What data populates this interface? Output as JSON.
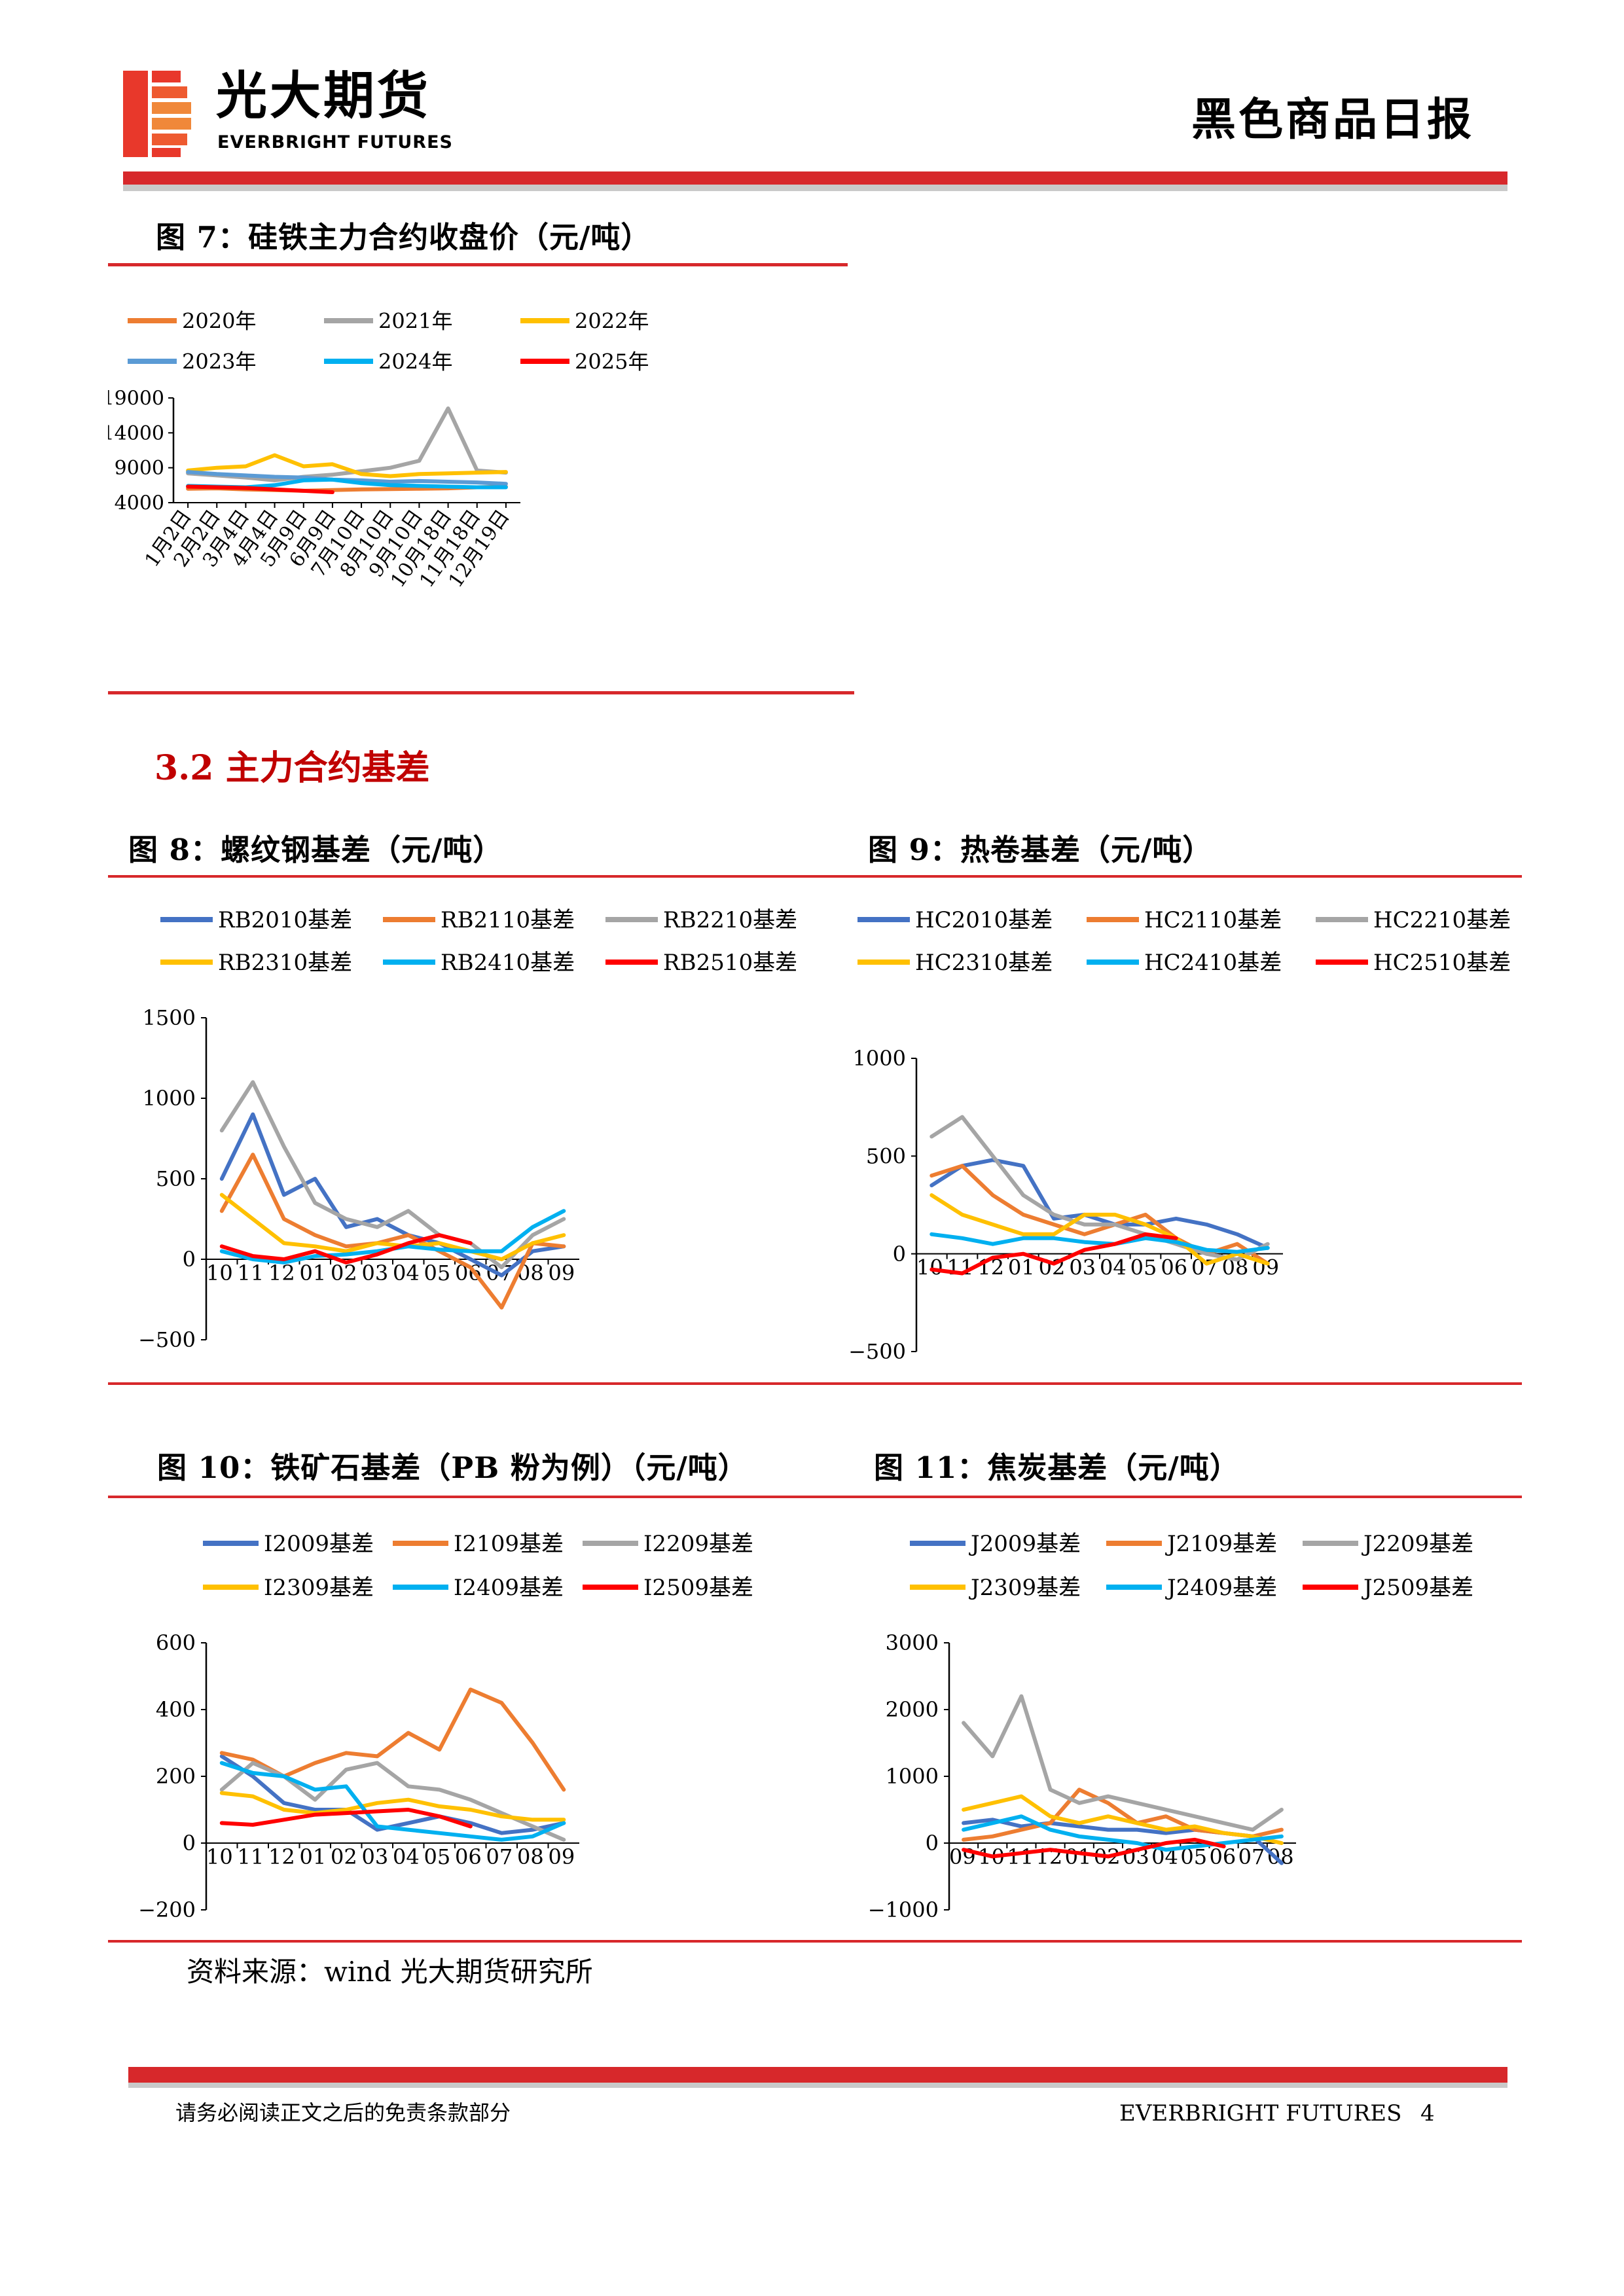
{
  "header": {
    "brand_cn": "光大期货",
    "brand_en": "EVERBRIGHT FUTURES",
    "report_title": "黑色商品日报",
    "logo_colors": [
      "#e8382b",
      "#f0883a"
    ]
  },
  "section": {
    "title": "3.2 主力合约基差"
  },
  "figures": [
    {
      "id": "fig7",
      "title": "图 7：硅铁主力合约收盘价（元/吨）"
    },
    {
      "id": "fig8",
      "title": "图 8：螺纹钢基差（元/吨）"
    },
    {
      "id": "fig9",
      "title": "图 9：热卷基差（元/吨）"
    },
    {
      "id": "fig10",
      "title": "图 10：铁矿石基差（PB 粉为例）（元/吨）"
    },
    {
      "id": "fig11",
      "title": "图 11：焦炭基差（元/吨）"
    }
  ],
  "source": "资料来源：wind 光大期货研究所",
  "footer": {
    "disclaimer": "请务必阅读正文之后的免责条款部分",
    "brand": "EVERBRIGHT FUTURES",
    "page": "4"
  },
  "chart_data": [
    {
      "id": "fig7",
      "type": "line",
      "title": "图 7：硅铁主力合约收盘价（元/吨）",
      "x": [
        "1月2日",
        "2月2日",
        "3月4日",
        "4月4日",
        "5月9日",
        "6月9日",
        "7月10日",
        "8月10日",
        "9月10日",
        "10月18日",
        "11月18日",
        "12月19日"
      ],
      "ylim": [
        4000,
        19000
      ],
      "yticks": [
        4000,
        9000,
        14000,
        19000
      ],
      "legend_position": "top",
      "legend_columns": 3,
      "series": [
        {
          "name": "2020年",
          "color": "#ed7d31",
          "values": [
            6000,
            6050,
            5900,
            5800,
            5700,
            5800,
            5900,
            5950,
            6000,
            6050,
            6200,
            6300
          ]
        },
        {
          "name": "2021年",
          "color": "#a5a5a5",
          "values": [
            8200,
            7900,
            7600,
            7200,
            7700,
            8000,
            8500,
            9000,
            10000,
            17500,
            8600,
            8300
          ]
        },
        {
          "name": "2022年",
          "color": "#ffc000",
          "values": [
            8600,
            9000,
            9200,
            10800,
            9200,
            9500,
            8100,
            7800,
            8100,
            8200,
            8300,
            8400
          ]
        },
        {
          "name": "2023年",
          "color": "#5b9bd5",
          "values": [
            8400,
            8100,
            7900,
            7700,
            7600,
            7300,
            7200,
            7000,
            7100,
            7000,
            6900,
            6700
          ]
        },
        {
          "name": "2024年",
          "color": "#00b0f0",
          "values": [
            6400,
            6300,
            6200,
            6500,
            7200,
            7300,
            6800,
            6500,
            6400,
            6300,
            6200,
            6200
          ]
        },
        {
          "name": "2025年",
          "color": "#ff0000",
          "values": [
            6300,
            6200,
            6100,
            5900,
            5700,
            5500,
            null,
            null,
            null,
            null,
            null,
            null
          ]
        }
      ]
    },
    {
      "id": "fig8",
      "type": "line",
      "title": "图 8：螺纹钢基差（元/吨）",
      "x": [
        "10",
        "11",
        "12",
        "01",
        "02",
        "03",
        "04",
        "05",
        "06",
        "07",
        "08",
        "09"
      ],
      "ylim": [
        -500,
        1500
      ],
      "yticks": [
        -500,
        0,
        500,
        1000,
        1500
      ],
      "legend_position": "top",
      "legend_columns": 3,
      "series": [
        {
          "name": "RB2010基差",
          "color": "#4472c4",
          "values": [
            500,
            900,
            400,
            500,
            200,
            250,
            150,
            100,
            0,
            -100,
            50,
            80
          ]
        },
        {
          "name": "RB2110基差",
          "color": "#ed7d31",
          "values": [
            300,
            650,
            250,
            150,
            80,
            100,
            150,
            50,
            -50,
            -300,
            100,
            80
          ]
        },
        {
          "name": "RB2210基差",
          "color": "#a5a5a5",
          "values": [
            800,
            1100,
            700,
            350,
            250,
            200,
            300,
            150,
            100,
            -50,
            150,
            250
          ]
        },
        {
          "name": "RB2310基差",
          "color": "#ffc000",
          "values": [
            400,
            250,
            100,
            80,
            50,
            100,
            80,
            100,
            50,
            0,
            100,
            150
          ]
        },
        {
          "name": "RB2410基差",
          "color": "#00b0f0",
          "values": [
            50,
            0,
            -20,
            20,
            30,
            50,
            80,
            60,
            50,
            50,
            200,
            300
          ]
        },
        {
          "name": "RB2510基差",
          "color": "#ff0000",
          "values": [
            80,
            20,
            0,
            50,
            -20,
            30,
            100,
            150,
            100,
            null,
            null,
            null
          ]
        }
      ]
    },
    {
      "id": "fig9",
      "type": "line",
      "title": "图 9：热卷基差（元/吨）",
      "x": [
        "10",
        "11",
        "12",
        "01",
        "02",
        "03",
        "04",
        "05",
        "06",
        "07",
        "08",
        "09"
      ],
      "ylim": [
        -500,
        1000
      ],
      "yticks": [
        -500,
        0,
        500,
        1000
      ],
      "legend_position": "top",
      "legend_columns": 3,
      "series": [
        {
          "name": "HC2010基差",
          "color": "#4472c4",
          "values": [
            350,
            450,
            480,
            450,
            180,
            200,
            150,
            150,
            180,
            150,
            100,
            30
          ]
        },
        {
          "name": "HC2110基差",
          "color": "#ed7d31",
          "values": [
            400,
            450,
            300,
            200,
            150,
            100,
            150,
            200,
            80,
            0,
            50,
            -50
          ]
        },
        {
          "name": "HC2210基差",
          "color": "#a5a5a5",
          "values": [
            600,
            700,
            500,
            300,
            200,
            150,
            150,
            100,
            50,
            0,
            -30,
            50
          ]
        },
        {
          "name": "HC2310基差",
          "color": "#ffc000",
          "values": [
            300,
            200,
            150,
            100,
            100,
            200,
            200,
            150,
            80,
            -50,
            0,
            -50
          ]
        },
        {
          "name": "HC2410基差",
          "color": "#00b0f0",
          "values": [
            100,
            80,
            50,
            80,
            80,
            60,
            50,
            80,
            60,
            20,
            10,
            30
          ]
        },
        {
          "name": "HC2510基差",
          "color": "#ff0000",
          "values": [
            -80,
            -100,
            -20,
            0,
            -50,
            20,
            50,
            100,
            80,
            null,
            null,
            null
          ]
        }
      ]
    },
    {
      "id": "fig10",
      "type": "line",
      "title": "图 10：铁矿石基差（PB 粉为例）（元/吨）",
      "x": [
        "10",
        "11",
        "12",
        "01",
        "02",
        "03",
        "04",
        "05",
        "06",
        "07",
        "08",
        "09"
      ],
      "ylim": [
        -200,
        600
      ],
      "yticks": [
        -200,
        0,
        200,
        400,
        600
      ],
      "legend_position": "top",
      "legend_columns": 3,
      "series": [
        {
          "name": "I2009基差",
          "color": "#4472c4",
          "values": [
            260,
            200,
            120,
            100,
            100,
            40,
            60,
            80,
            60,
            30,
            40,
            60
          ]
        },
        {
          "name": "I2109基差",
          "color": "#ed7d31",
          "values": [
            270,
            250,
            200,
            240,
            270,
            260,
            330,
            280,
            460,
            420,
            300,
            160
          ]
        },
        {
          "name": "I2209基差",
          "color": "#a5a5a5",
          "values": [
            160,
            240,
            200,
            130,
            220,
            240,
            170,
            160,
            130,
            90,
            50,
            10
          ]
        },
        {
          "name": "I2309基差",
          "color": "#ffc000",
          "values": [
            150,
            140,
            100,
            90,
            100,
            120,
            130,
            110,
            100,
            80,
            70,
            70
          ]
        },
        {
          "name": "I2409基差",
          "color": "#00b0f0",
          "values": [
            240,
            210,
            200,
            160,
            170,
            50,
            40,
            30,
            20,
            10,
            20,
            60
          ]
        },
        {
          "name": "I2509基差",
          "color": "#ff0000",
          "values": [
            60,
            55,
            70,
            85,
            90,
            95,
            100,
            80,
            50,
            null,
            null,
            null
          ]
        }
      ]
    },
    {
      "id": "fig11",
      "type": "line",
      "title": "图 11：焦炭基差（元/吨）",
      "x": [
        "09",
        "10",
        "11",
        "12",
        "01",
        "02",
        "03",
        "04",
        "05",
        "06",
        "07",
        "08"
      ],
      "ylim": [
        -1000,
        3000
      ],
      "yticks": [
        -1000,
        0,
        1000,
        2000,
        3000
      ],
      "legend_position": "top",
      "legend_columns": 3,
      "series": [
        {
          "name": "J2009基差",
          "color": "#4472c4",
          "values": [
            300,
            350,
            250,
            300,
            250,
            200,
            200,
            150,
            200,
            150,
            100,
            -300
          ]
        },
        {
          "name": "J2109基差",
          "color": "#ed7d31",
          "values": [
            50,
            100,
            200,
            300,
            800,
            600,
            300,
            400,
            200,
            150,
            100,
            200
          ]
        },
        {
          "name": "J2209基差",
          "color": "#a5a5a5",
          "values": [
            1800,
            1300,
            2200,
            800,
            600,
            700,
            600,
            500,
            400,
            300,
            200,
            500
          ]
        },
        {
          "name": "J2309基差",
          "color": "#ffc000",
          "values": [
            500,
            600,
            700,
            400,
            300,
            400,
            300,
            200,
            250,
            150,
            100,
            0
          ]
        },
        {
          "name": "J2409基差",
          "color": "#00b0f0",
          "values": [
            200,
            300,
            400,
            200,
            100,
            50,
            0,
            -100,
            -50,
            0,
            50,
            100
          ]
        },
        {
          "name": "J2509基差",
          "color": "#ff0000",
          "values": [
            -100,
            -200,
            -150,
            -100,
            -150,
            -200,
            -100,
            0,
            50,
            -50,
            null,
            null
          ]
        }
      ]
    }
  ]
}
